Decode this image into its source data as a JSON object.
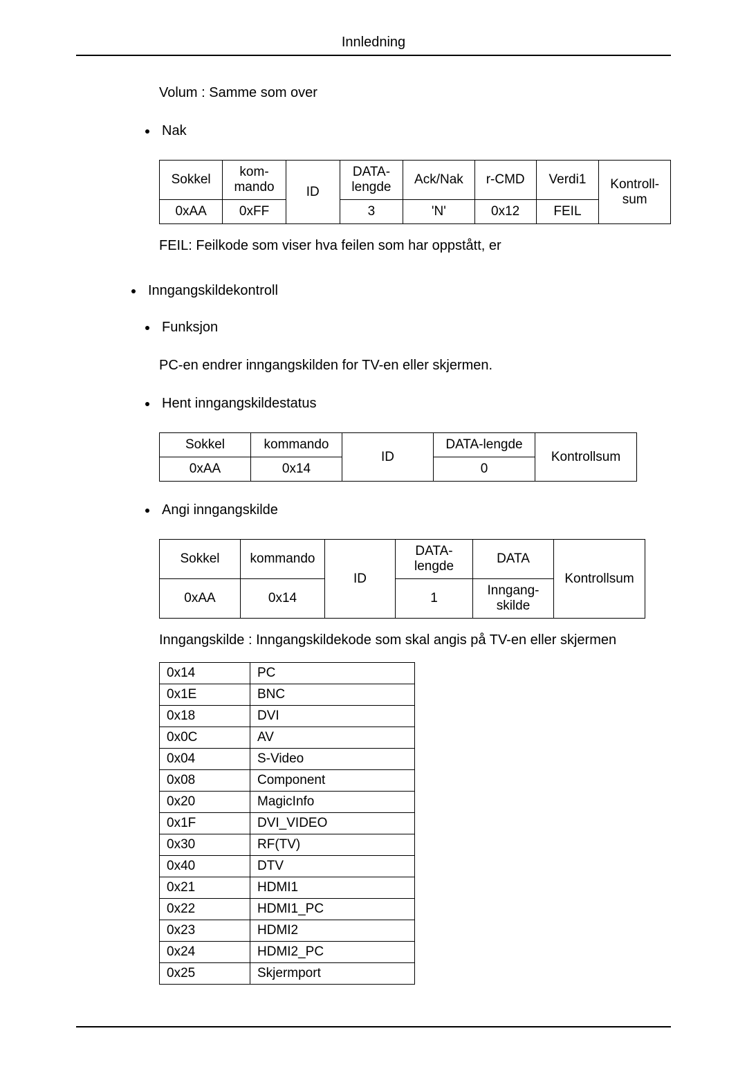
{
  "header": {
    "title": "Innledning"
  },
  "volum_line": "Volum : Samme som over",
  "nak": {
    "label": "Nak",
    "table": {
      "headers": [
        "Sokkel",
        "kom-\nmando",
        "ID",
        "DATA-\nlengde",
        "Ack/Nak",
        "r-CMD",
        "Verdi1",
        "Kontroll-\nsum"
      ],
      "row": [
        "0xAA",
        "0xFF",
        "",
        "3",
        "'N'",
        "0x12",
        "FEIL",
        ""
      ]
    },
    "feil_line": "FEIL: Feilkode som viser hva feilen som har oppstått, er"
  },
  "inngangskildekontroll": {
    "label": "Inngangskildekontroll",
    "funksjon": {
      "label": "Funksjon",
      "text": "PC-en endrer inngangskilden for TV-en eller skjermen."
    },
    "hent": {
      "label": "Hent inngangskildestatus",
      "table": {
        "headers": [
          "Sokkel",
          "kommando",
          "ID",
          "DATA-lengde",
          "Kontrollsum"
        ],
        "row": [
          "0xAA",
          "0x14",
          "",
          "0",
          ""
        ]
      }
    },
    "angi": {
      "label": "Angi inngangskilde",
      "table": {
        "headers": [
          "Sokkel",
          "kommando",
          "ID",
          "DATA-\nlengde",
          "DATA",
          "Kontrollsum"
        ],
        "row": [
          "0xAA",
          "0x14",
          "",
          "1",
          "Inngang-\nskilde",
          ""
        ]
      },
      "note": "Inngangskilde : Inngangskildekode som skal angis på TV-en eller skjermen"
    },
    "codes": {
      "rows": [
        [
          "0x14",
          "PC"
        ],
        [
          "0x1E",
          "BNC"
        ],
        [
          "0x18",
          "DVI"
        ],
        [
          "0x0C",
          "AV"
        ],
        [
          "0x04",
          "S-Video"
        ],
        [
          "0x08",
          "Component"
        ],
        [
          "0x20",
          "MagicInfo"
        ],
        [
          "0x1F",
          "DVI_VIDEO"
        ],
        [
          "0x30",
          "RF(TV)"
        ],
        [
          "0x40",
          "DTV"
        ],
        [
          "0x21",
          "HDMI1"
        ],
        [
          "0x22",
          "HDMI1_PC"
        ],
        [
          "0x23",
          "HDMI2"
        ],
        [
          "0x24",
          "HDMI2_PC"
        ],
        [
          "0x25",
          "Skjermport"
        ]
      ]
    }
  }
}
